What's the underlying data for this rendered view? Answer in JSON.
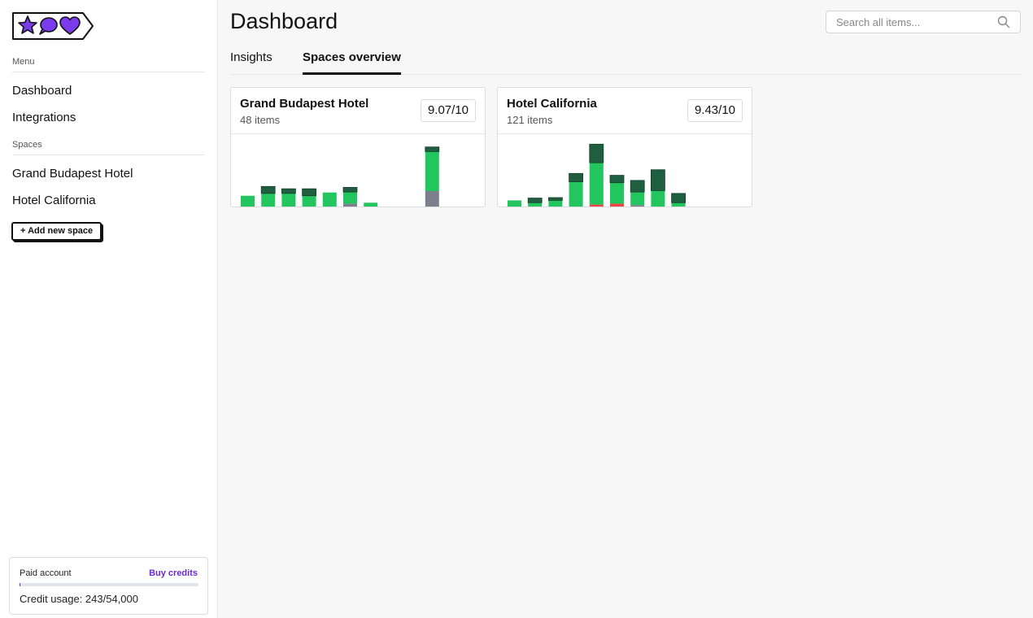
{
  "sidebar": {
    "logo_icons": [
      "star-icon",
      "speech-bubble-icon",
      "heart-icon"
    ],
    "menu_label": "Menu",
    "menu_items": [
      {
        "label": "Dashboard"
      },
      {
        "label": "Integrations"
      }
    ],
    "spaces_label": "Spaces",
    "spaces": [
      {
        "label": "Grand Budapest Hotel"
      },
      {
        "label": "Hotel California"
      }
    ],
    "add_space_label": "+ Add new space",
    "account": {
      "title": "Paid account",
      "buy_label": "Buy credits",
      "usage_text": "Credit usage: 243/54,000",
      "usage_fraction": 0.0045
    }
  },
  "header": {
    "title": "Dashboard",
    "search_placeholder": "Search all items...",
    "search_icon": "search-icon"
  },
  "tabs": [
    {
      "label": "Insights",
      "active": false
    },
    {
      "label": "Spaces overview",
      "active": true
    }
  ],
  "colors": {
    "accent": "#6d28d9",
    "positive": "#22c55e",
    "very_positive": "#1f5f3f",
    "neutral": "#7d7f8d",
    "negative": "#ef4444"
  },
  "cards": [
    {
      "name": "Grand Budapest Hotel",
      "count": "48 items",
      "score": "9.07/10",
      "chart_data": {
        "type": "bar",
        "stacked": true,
        "series_order": [
          "negative",
          "neutral",
          "positive",
          "very_positive"
        ],
        "max": 14,
        "bars": [
          {
            "neutral": 0,
            "positive": 2.5,
            "very_positive": 0,
            "negative": 0
          },
          {
            "neutral": 0,
            "positive": 3,
            "very_positive": 1.5,
            "negative": 0
          },
          {
            "neutral": 0,
            "positive": 3,
            "very_positive": 1,
            "negative": 0
          },
          {
            "neutral": 0,
            "positive": 2.5,
            "very_positive": 1.5,
            "negative": 0
          },
          {
            "neutral": 0,
            "positive": 3.2,
            "very_positive": 0,
            "negative": 0
          },
          {
            "neutral": 0.8,
            "positive": 2.5,
            "very_positive": 1,
            "negative": 0
          },
          {
            "neutral": 0,
            "positive": 1,
            "very_positive": 0,
            "negative": 0
          },
          {
            "neutral": 0,
            "positive": 0,
            "very_positive": 0,
            "negative": 0
          },
          {
            "neutral": 0,
            "positive": 0,
            "very_positive": 0,
            "negative": 0
          },
          {
            "neutral": 3.5,
            "positive": 8.5,
            "very_positive": 1,
            "negative": 0
          }
        ]
      }
    },
    {
      "name": "Hotel California",
      "count": "121 items",
      "score": "9.43/10",
      "chart_data": {
        "type": "bar",
        "stacked": true,
        "series_order": [
          "negative",
          "neutral",
          "positive",
          "very_positive"
        ],
        "max": 14,
        "bars": [
          {
            "neutral": 0,
            "positive": 1.5,
            "very_positive": 0,
            "negative": 0
          },
          {
            "neutral": 0,
            "positive": 1,
            "very_positive": 1,
            "negative": 0
          },
          {
            "neutral": 0,
            "positive": 1.5,
            "very_positive": 0.6,
            "negative": 0
          },
          {
            "neutral": 0,
            "positive": 5.5,
            "very_positive": 1.8,
            "negative": 0
          },
          {
            "neutral": 0,
            "positive": 9,
            "very_positive": 4,
            "negative": 0.6
          },
          {
            "neutral": 0,
            "positive": 4.5,
            "very_positive": 1.6,
            "negative": 0.8
          },
          {
            "neutral": 0.5,
            "positive": 2.8,
            "very_positive": 2.5,
            "negative": 0
          },
          {
            "neutral": 0,
            "positive": 3.6,
            "very_positive": 4.5,
            "negative": 0
          },
          {
            "neutral": 0,
            "positive": 1,
            "very_positive": 2,
            "negative": 0
          }
        ]
      }
    }
  ]
}
